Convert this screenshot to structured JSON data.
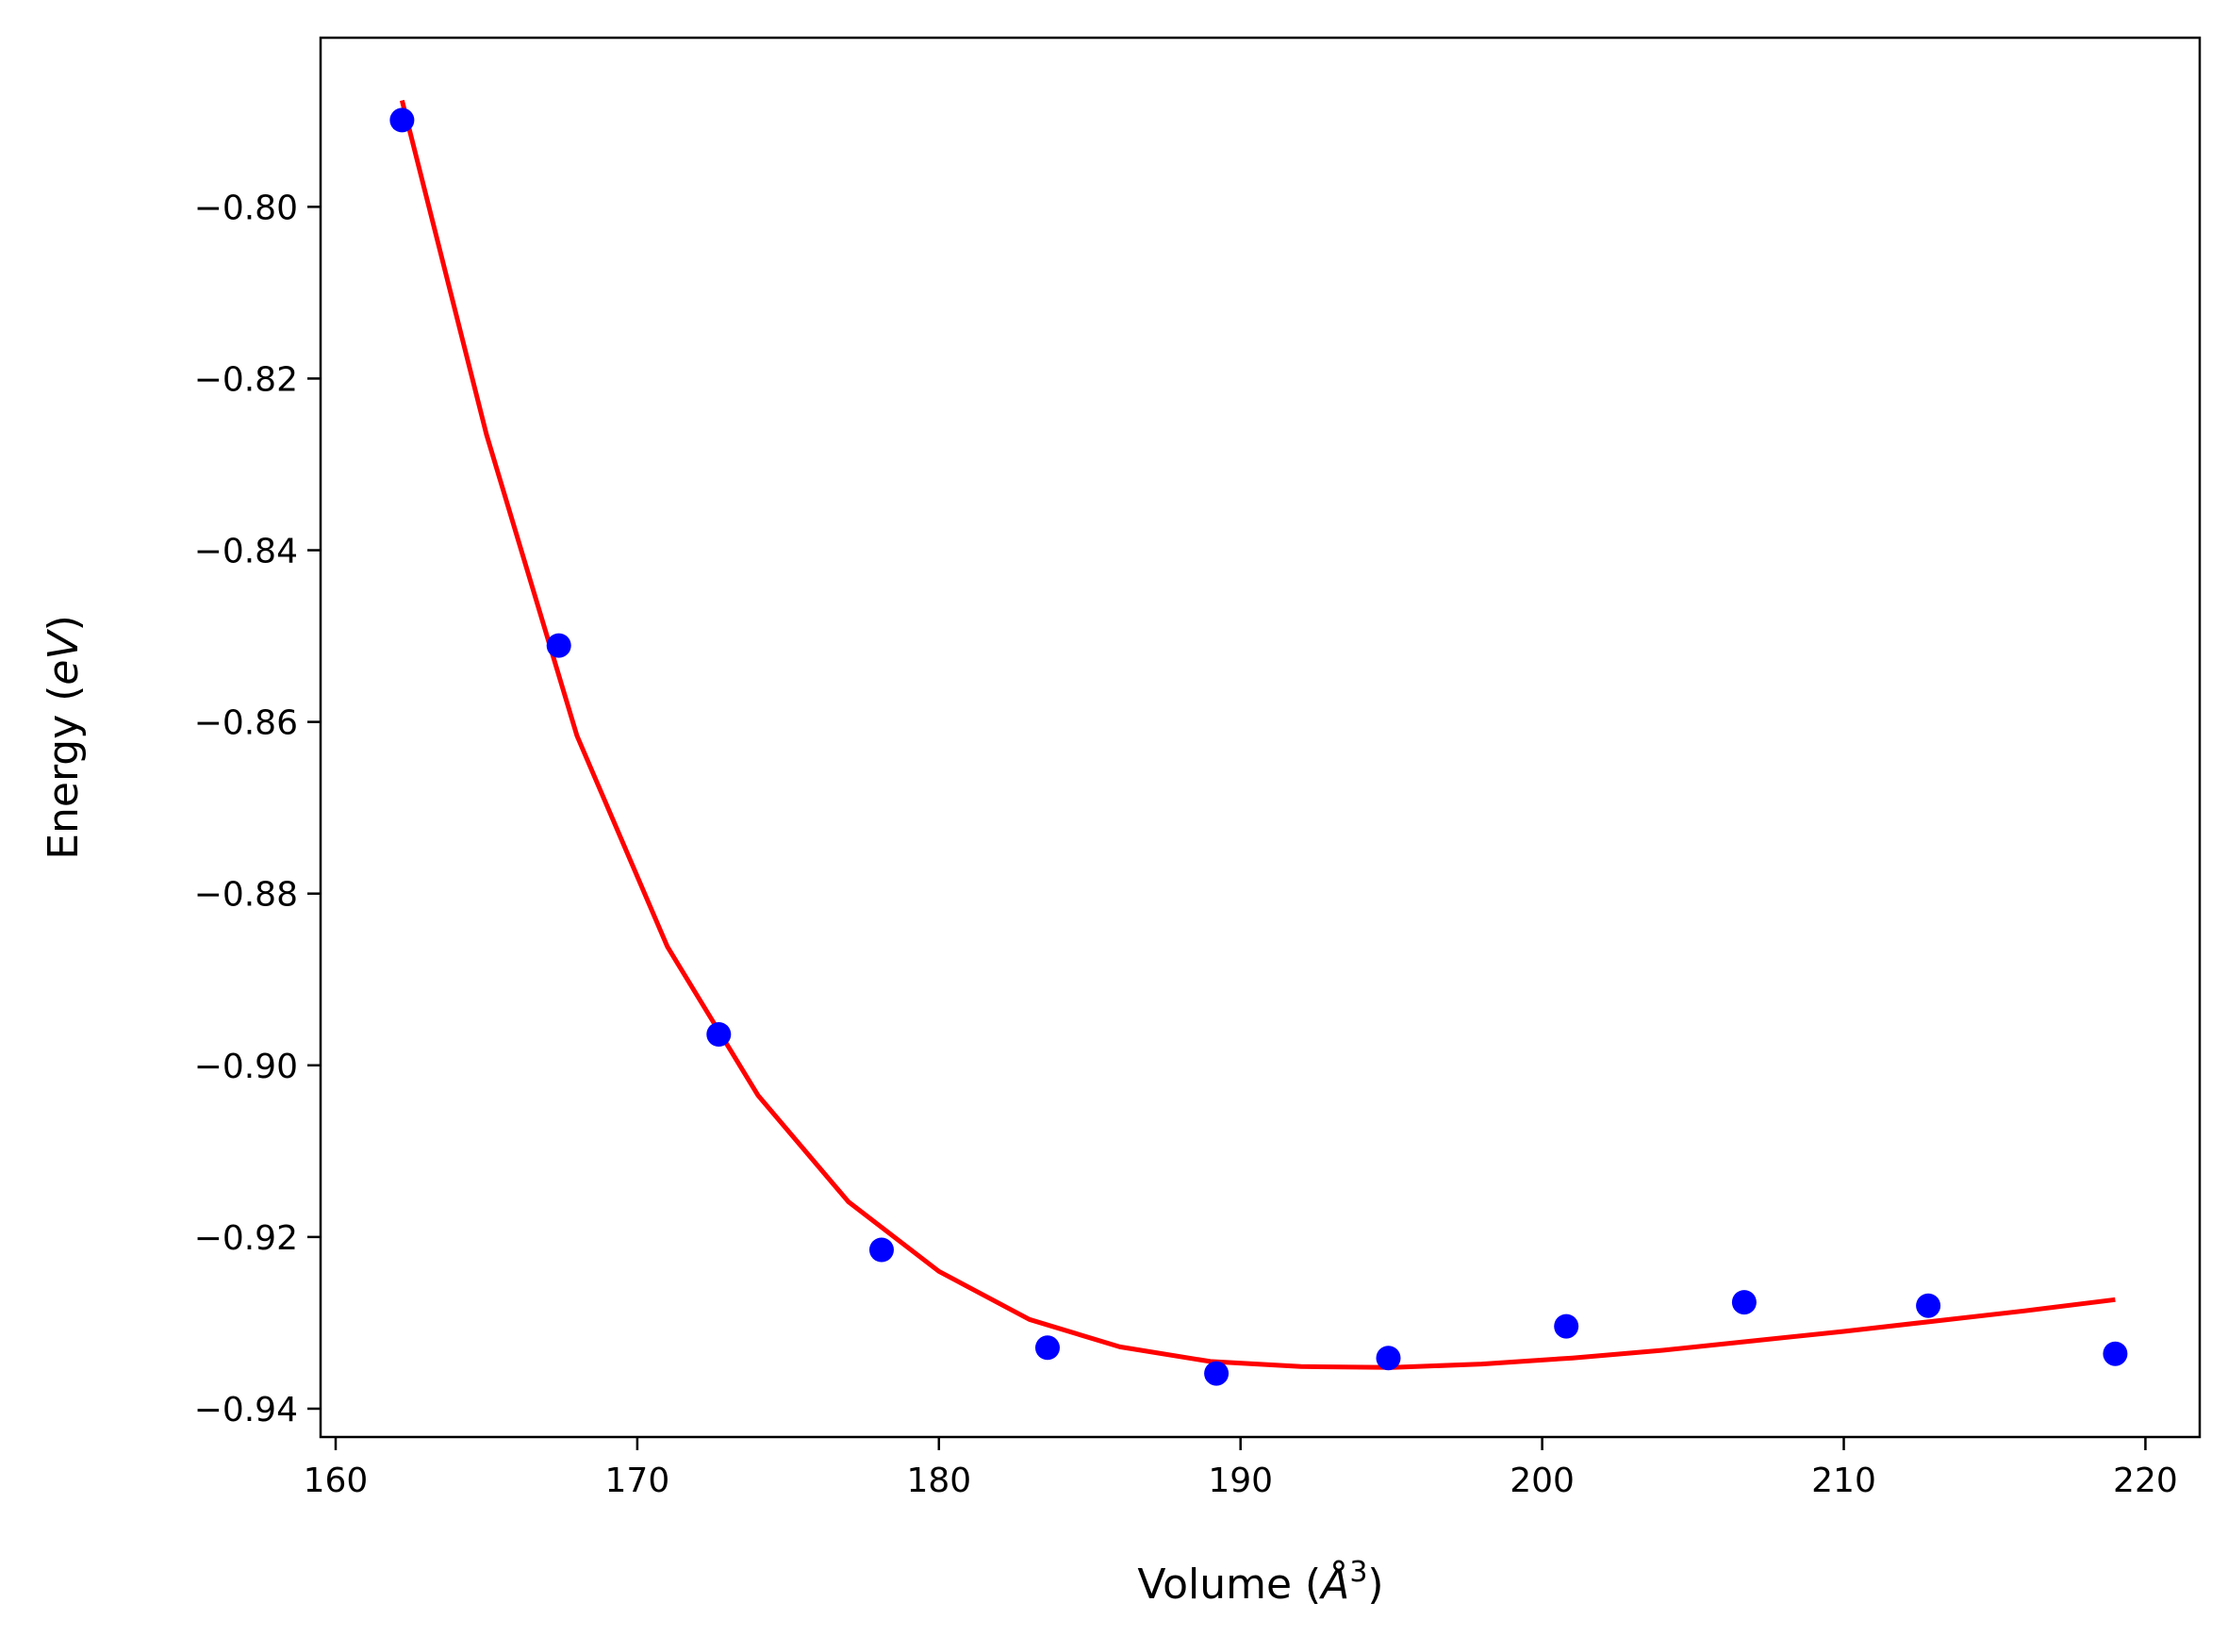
{
  "chart_data": {
    "type": "scatter",
    "xlabel_main": "Volume (",
    "xlabel_unit": "Å",
    "xlabel_sup": "3",
    "xlabel_close": ")",
    "ylabel_main": "Energy (",
    "ylabel_unit": "eV",
    "ylabel_close": ")",
    "xlim": [
      159.5,
      221.8
    ],
    "ylim": [
      -0.9433,
      -0.7803
    ],
    "xticks": [
      160,
      170,
      180,
      190,
      200,
      210,
      220
    ],
    "xtick_labels": [
      "160",
      "170",
      "180",
      "190",
      "200",
      "210",
      "220"
    ],
    "yticks": [
      -0.8,
      -0.82,
      -0.84,
      -0.86,
      -0.88,
      -0.9,
      -0.92,
      -0.94
    ],
    "ytick_labels": [
      "−0.80",
      "−0.82",
      "−0.84",
      "−0.86",
      "−0.88",
      "−0.90",
      "−0.92",
      "−0.94"
    ],
    "grid": false,
    "series": [
      {
        "kind": "points",
        "color": "#0000ff",
        "x": [
          162.2,
          167.4,
          172.7,
          178.1,
          183.6,
          189.2,
          194.9,
          200.8,
          206.7,
          212.8,
          219.0
        ],
        "y": [
          -0.7899,
          -0.8511,
          -0.8964,
          -0.9215,
          -0.9329,
          -0.9359,
          -0.9341,
          -0.9304,
          -0.9276,
          -0.928,
          -0.9336
        ]
      },
      {
        "kind": "fit-line",
        "color": "#ff0000",
        "x": [
          162.2,
          165,
          168,
          171,
          174,
          177,
          180,
          183,
          186,
          189,
          192,
          195,
          198,
          201,
          204,
          207,
          210,
          213,
          216,
          219.0
        ],
        "y": [
          -0.7876,
          -0.8265,
          -0.8616,
          -0.8862,
          -0.9035,
          -0.9159,
          -0.924,
          -0.9296,
          -0.9328,
          -0.9345,
          -0.9351,
          -0.9352,
          -0.9348,
          -0.9341,
          -0.9332,
          -0.9321,
          -0.931,
          -0.9298,
          -0.9286,
          -0.9273
        ]
      }
    ]
  }
}
